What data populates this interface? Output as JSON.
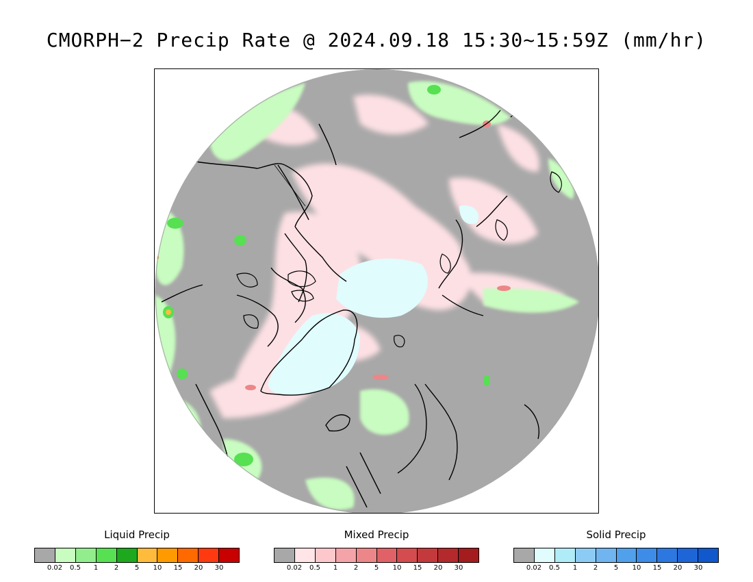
{
  "title": "CMORPH−2 Precip Rate @ 2024.09.18 15:30~15:59Z (mm/hr)",
  "map": {
    "projection": "north-polar-stereographic",
    "colors": {
      "no_precip": "#a8a8a8",
      "outside": "#ffffff",
      "coast": "#000000"
    }
  },
  "legends": [
    {
      "title": "Liquid Precip",
      "colors": [
        "#a8a8a8",
        "#c8fcc0",
        "#92ee8c",
        "#56e052",
        "#1ea81e",
        "#ffbb3c",
        "#ff9a00",
        "#ff6a00",
        "#ff3a10",
        "#c80000"
      ],
      "ticks": [
        "0.02",
        "0.5",
        "1",
        "2",
        "5",
        "10",
        "15",
        "20",
        "30"
      ]
    },
    {
      "title": "Mixed Precip",
      "colors": [
        "#a8a8a8",
        "#ffe4e8",
        "#fcc8cc",
        "#f4a4a8",
        "#ec8688",
        "#e06266",
        "#d44c4e",
        "#c43a3c",
        "#b42a2c",
        "#a41c1e"
      ],
      "ticks": [
        "0.02",
        "0.5",
        "1",
        "2",
        "5",
        "10",
        "15",
        "20",
        "30"
      ]
    },
    {
      "title": "Solid Precip",
      "colors": [
        "#a8a8a8",
        "#e0fcfc",
        "#b0ecf8",
        "#8cccf4",
        "#70b4f0",
        "#50a0ec",
        "#3c8ce8",
        "#2c78e0",
        "#1e66d8",
        "#1058cc"
      ],
      "ticks": [
        "0.02",
        "0.5",
        "1",
        "2",
        "5",
        "10",
        "15",
        "20",
        "30"
      ]
    }
  ]
}
